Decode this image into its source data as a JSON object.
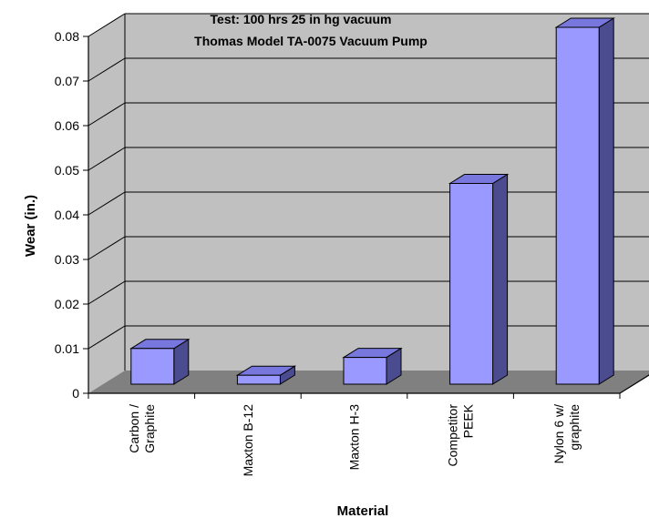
{
  "chart_data": {
    "type": "bar",
    "title": "Test: 100 hrs 25 in hg vacuum",
    "subtitle": "Thomas Model TA-0075 Vacuum Pump",
    "xlabel": "Material",
    "ylabel": "Wear (in.)",
    "ylim": [
      0,
      0.08
    ],
    "yticks": [
      "0",
      "0.01",
      "0.02",
      "0.03",
      "0.04",
      "0.05",
      "0.06",
      "0.07",
      "0.08"
    ],
    "categories": [
      [
        "Carbon /",
        "Graphite"
      ],
      [
        "Maxton B-12"
      ],
      [
        "Maxton H-3"
      ],
      [
        "Competitor",
        "PEEK"
      ],
      [
        "Nylon 6 w/",
        "graphite"
      ]
    ],
    "values": [
      0.008,
      0.002,
      0.006,
      0.045,
      0.08
    ],
    "grid": true,
    "legend": "none",
    "colors": {
      "wall": "#c0c0c0",
      "floor": "#808080",
      "bar_front": "#9999ff",
      "bar_top": "#7777dd",
      "bar_side": "#4b4b8f",
      "grid": "#000000"
    }
  }
}
